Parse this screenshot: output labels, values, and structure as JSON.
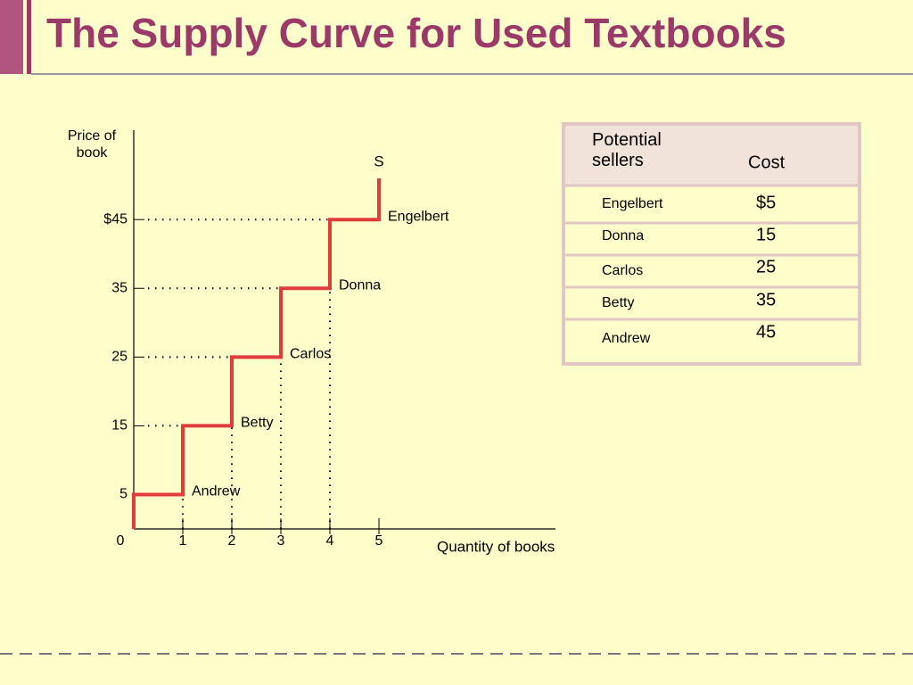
{
  "title": "The Supply Curve for Used Textbooks",
  "chart_data": {
    "type": "step",
    "y_label": "Price of book",
    "x_label": "Quantity of books",
    "series": [
      {
        "name": "S",
        "color": "#e03c3c",
        "x": [
          0,
          0,
          1,
          1,
          2,
          2,
          3,
          3,
          4,
          4,
          5,
          5
        ],
        "values": [
          0,
          5,
          5,
          15,
          15,
          25,
          25,
          35,
          35,
          45,
          45,
          51
        ]
      }
    ],
    "annotations": [
      "Andrew",
      "Betty",
      "Carlos",
      "Donna",
      "Engelbert"
    ],
    "xlim": [
      0,
      8.6
    ],
    "xticks": [
      0,
      1,
      2,
      3,
      4,
      5
    ],
    "ylim": [
      0,
      58
    ],
    "yticks": [
      5,
      15,
      25,
      35,
      {
        "value": 45,
        "label": "$45"
      }
    ],
    "guides": "dotted"
  },
  "table": {
    "header": [
      "Potential sellers",
      "Cost"
    ],
    "rows": [
      [
        "Engelbert",
        "$5"
      ],
      [
        "Donna",
        "15"
      ],
      [
        "Carlos",
        "25"
      ],
      [
        "Betty",
        "35"
      ],
      [
        "Andrew",
        "45"
      ]
    ]
  }
}
